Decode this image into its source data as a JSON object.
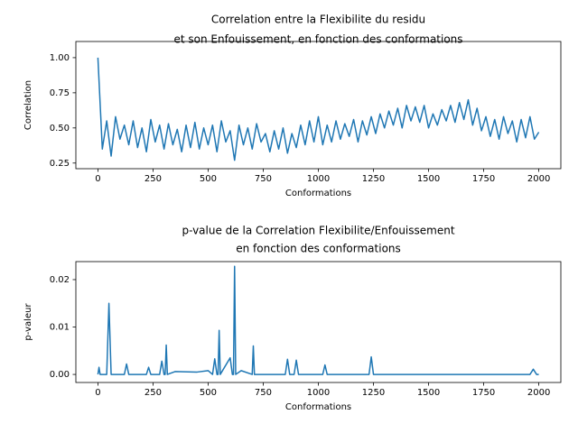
{
  "chart_data": [
    {
      "type": "line",
      "title": [
        "Correlation entre la Flexibilite du residu",
        "et son Enfouissement, en fonction des conformations"
      ],
      "xlabel": "Conformations",
      "ylabel": "Correlation",
      "color": "#1f77b4",
      "x": [
        0,
        20,
        40,
        60,
        80,
        100,
        120,
        140,
        160,
        180,
        200,
        220,
        240,
        260,
        280,
        300,
        320,
        340,
        360,
        380,
        400,
        420,
        440,
        460,
        480,
        500,
        520,
        540,
        560,
        580,
        600,
        620,
        640,
        660,
        680,
        700,
        720,
        740,
        760,
        780,
        800,
        820,
        840,
        860,
        880,
        900,
        920,
        940,
        960,
        980,
        1000,
        1020,
        1040,
        1060,
        1080,
        1100,
        1120,
        1140,
        1160,
        1180,
        1200,
        1220,
        1240,
        1260,
        1280,
        1300,
        1320,
        1340,
        1360,
        1380,
        1400,
        1420,
        1440,
        1460,
        1480,
        1500,
        1520,
        1540,
        1560,
        1580,
        1600,
        1620,
        1640,
        1660,
        1680,
        1700,
        1720,
        1740,
        1760,
        1780,
        1800,
        1820,
        1840,
        1860,
        1880,
        1900,
        1920,
        1940,
        1960,
        1980,
        2000
      ],
      "values": [
        1.0,
        0.35,
        0.55,
        0.3,
        0.58,
        0.42,
        0.52,
        0.38,
        0.55,
        0.36,
        0.5,
        0.33,
        0.56,
        0.4,
        0.52,
        0.35,
        0.53,
        0.38,
        0.49,
        0.33,
        0.52,
        0.36,
        0.54,
        0.35,
        0.5,
        0.38,
        0.52,
        0.33,
        0.55,
        0.4,
        0.48,
        0.27,
        0.52,
        0.38,
        0.5,
        0.35,
        0.53,
        0.4,
        0.46,
        0.33,
        0.48,
        0.35,
        0.5,
        0.32,
        0.46,
        0.36,
        0.52,
        0.38,
        0.55,
        0.4,
        0.58,
        0.38,
        0.52,
        0.4,
        0.55,
        0.42,
        0.53,
        0.44,
        0.56,
        0.4,
        0.55,
        0.45,
        0.58,
        0.46,
        0.6,
        0.5,
        0.62,
        0.52,
        0.64,
        0.5,
        0.66,
        0.55,
        0.65,
        0.54,
        0.66,
        0.5,
        0.6,
        0.52,
        0.63,
        0.55,
        0.66,
        0.54,
        0.68,
        0.56,
        0.7,
        0.52,
        0.64,
        0.48,
        0.58,
        0.44,
        0.56,
        0.42,
        0.58,
        0.46,
        0.55,
        0.4,
        0.56,
        0.43,
        0.58,
        0.42,
        0.47
      ],
      "xlim": [
        -100,
        2100
      ],
      "xticks": [
        0,
        250,
        500,
        750,
        1000,
        1250,
        1500,
        1750,
        2000
      ],
      "ylim": [
        0.21,
        1.115
      ],
      "yticks": [
        {
          "value": 0.25,
          "label": "0.25"
        },
        {
          "value": 0.5,
          "label": "0.50"
        },
        {
          "value": 0.75,
          "label": "0.75"
        },
        {
          "value": 1,
          "label": "1.00"
        }
      ]
    },
    {
      "type": "line",
      "title": [
        "p-value de la Correlation Flexibilite/Enfouissement",
        "en fonction des conformations"
      ],
      "xlabel": "Conformations",
      "ylabel": "p-valeur",
      "color": "#1f77b4",
      "x": [
        0,
        5,
        10,
        40,
        50,
        60,
        120,
        130,
        140,
        220,
        230,
        240,
        280,
        290,
        300,
        305,
        310,
        315,
        350,
        450,
        500,
        520,
        530,
        540,
        545,
        550,
        555,
        600,
        610,
        615,
        620,
        625,
        650,
        700,
        705,
        710,
        850,
        860,
        870,
        890,
        900,
        910,
        1020,
        1030,
        1040,
        1230,
        1240,
        1250,
        1500,
        1960,
        1975,
        1990,
        2000
      ],
      "values": [
        0,
        0.0015,
        0,
        0,
        0.015,
        0,
        0,
        0.0022,
        0,
        0,
        0.0015,
        0,
        0,
        0.0028,
        0,
        0,
        0.0062,
        0,
        0.0006,
        0.0005,
        0.0008,
        0,
        0.0033,
        0,
        0,
        0.0093,
        0,
        0.0035,
        0,
        0,
        0.0228,
        0,
        0.0008,
        0,
        0.006,
        0,
        0,
        0.0032,
        0,
        0,
        0.003,
        0,
        0,
        0.002,
        0,
        0,
        0.0037,
        0,
        0,
        0,
        0.0011,
        0,
        0
      ],
      "xlim": [
        -100,
        2100
      ],
      "xticks": [
        0,
        250,
        500,
        750,
        1000,
        1250,
        1500,
        1750,
        2000
      ],
      "ylim": [
        -0.0017,
        0.0238
      ],
      "yticks": [
        {
          "value": 0,
          "label": "0.00"
        },
        {
          "value": 0.01,
          "label": "0.01"
        },
        {
          "value": 0.02,
          "label": "0.02"
        }
      ]
    }
  ]
}
